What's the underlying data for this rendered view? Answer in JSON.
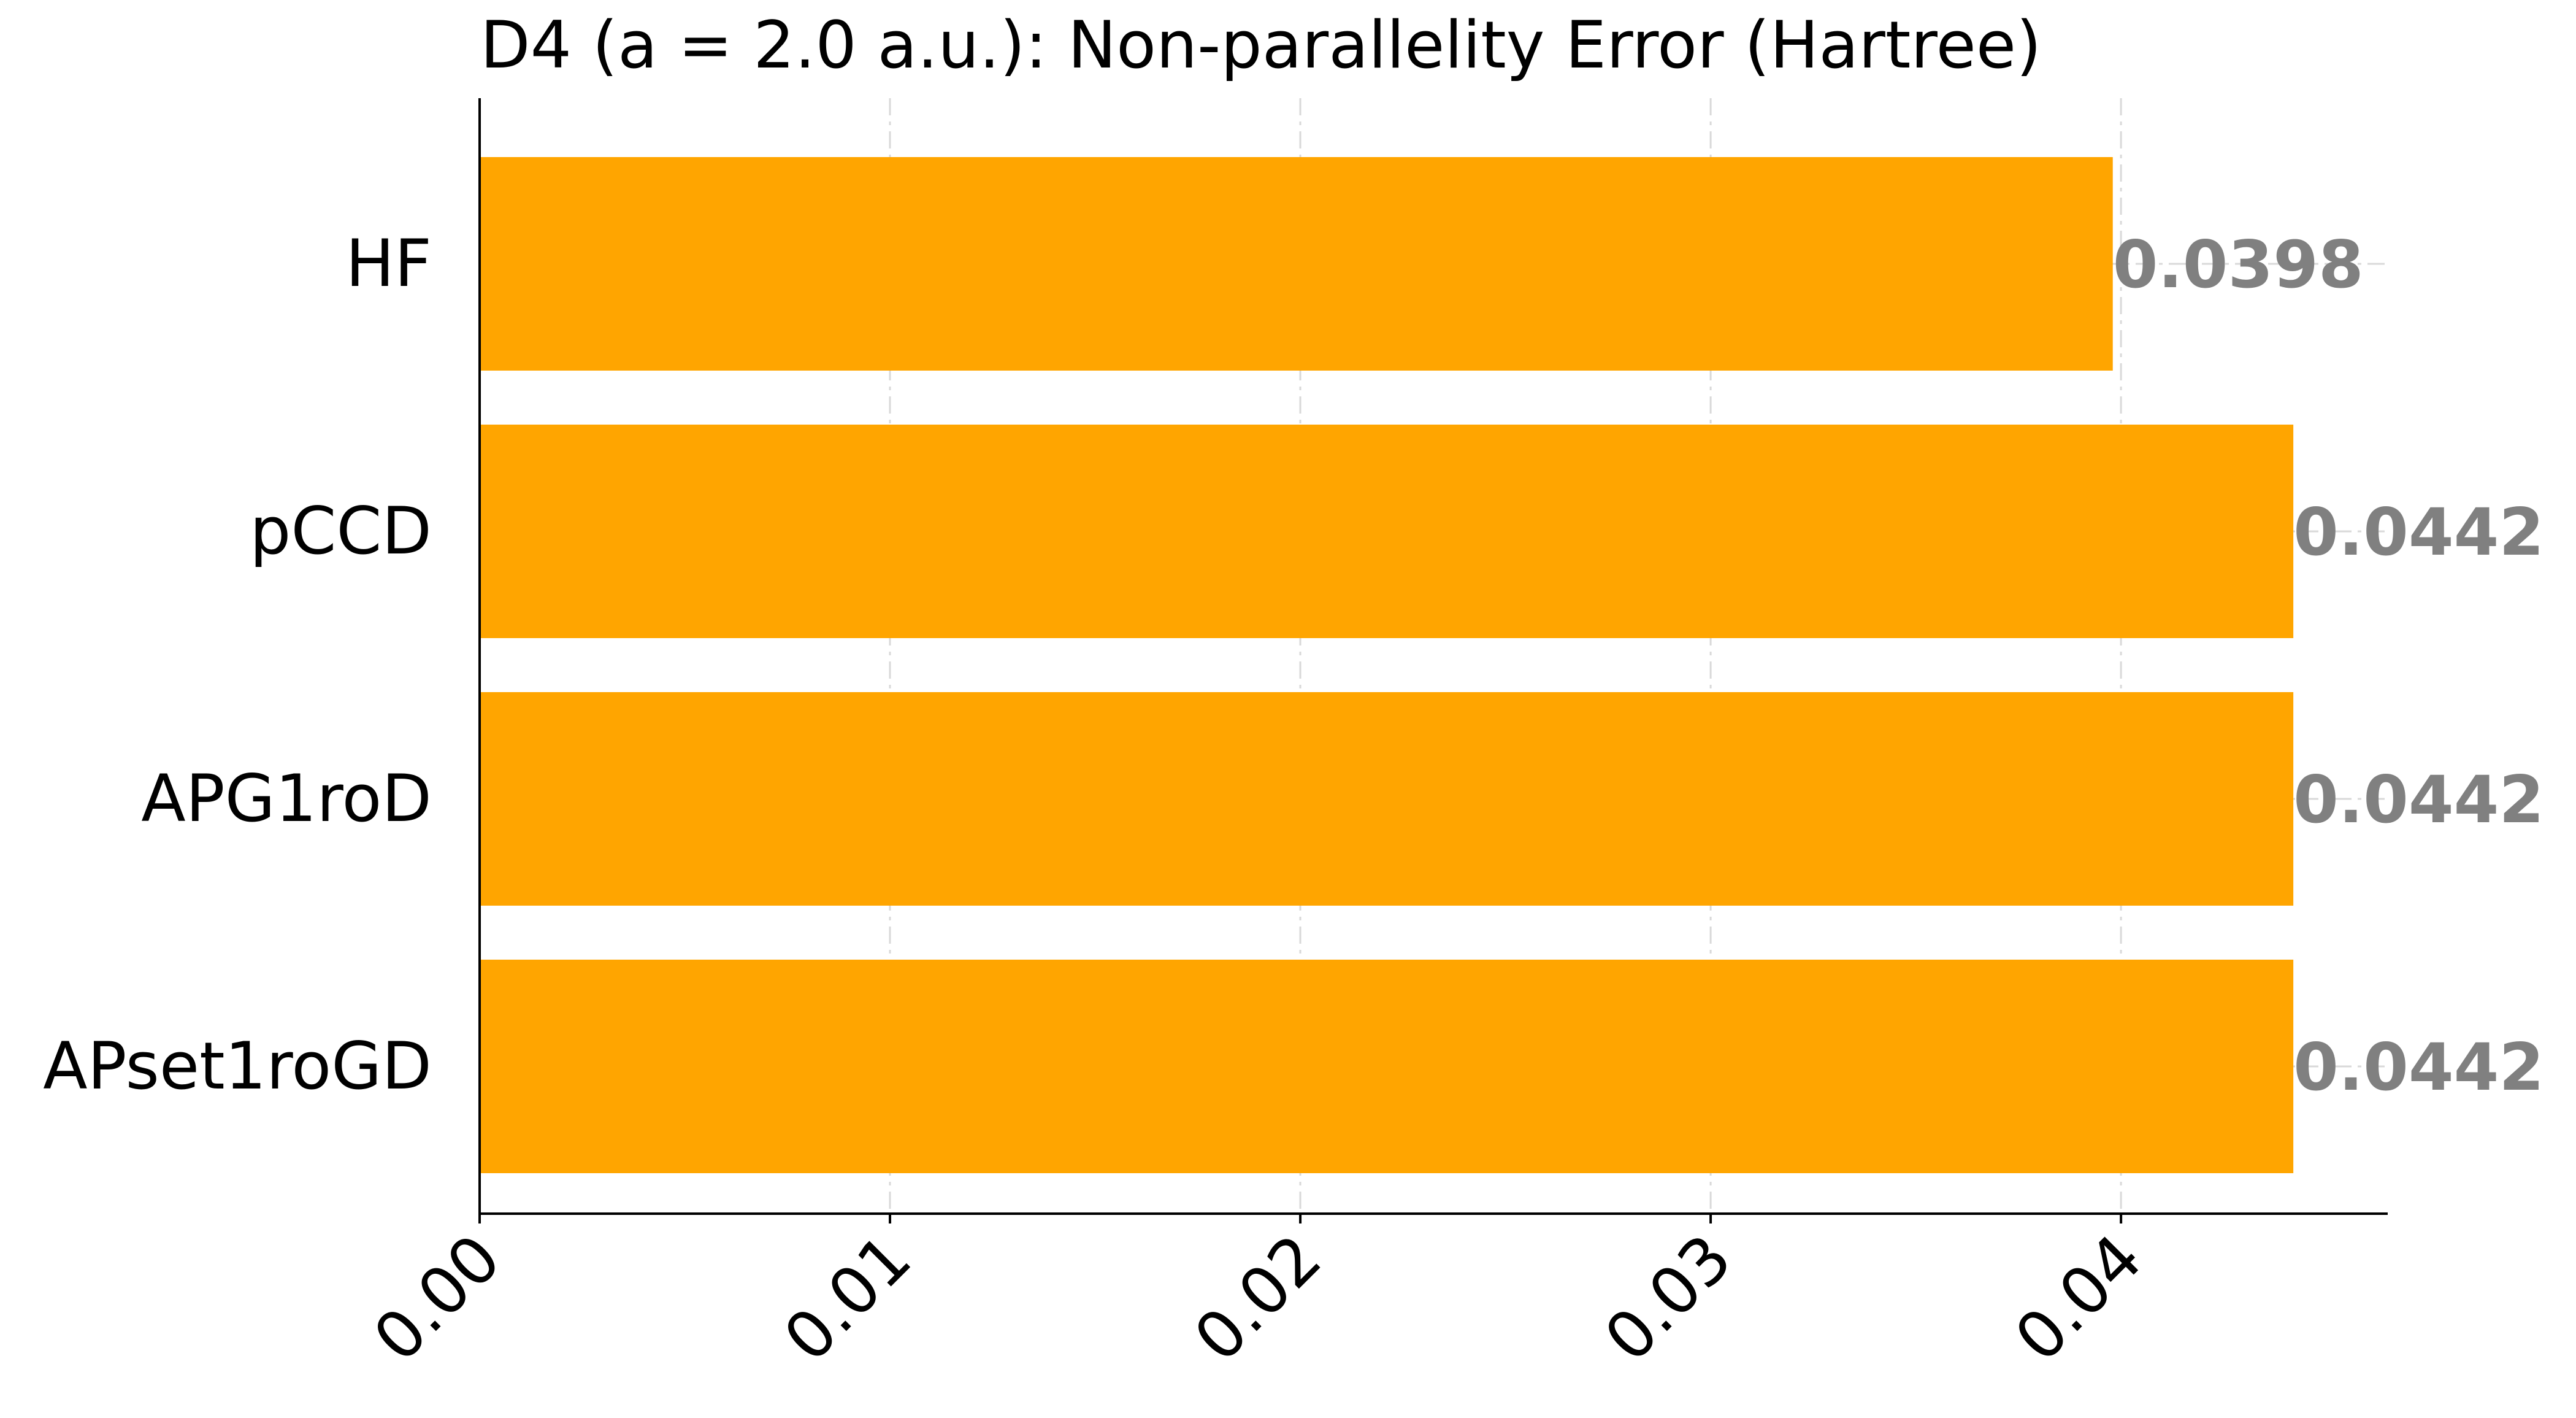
{
  "chart_data": {
    "type": "bar",
    "orientation": "horizontal",
    "title": "D4 (a = 2.0 a.u.): Non-parallelity Error (Hartree)",
    "xlabel": "",
    "ylabel": "",
    "categories": [
      "HF",
      "pCCD",
      "APG1roD",
      "APset1roGD"
    ],
    "values": [
      0.0398,
      0.0442,
      0.0442,
      0.0442
    ],
    "data_labels": [
      "0.0398",
      "0.0442",
      "0.0442",
      "0.0442"
    ],
    "xlim": [
      0,
      0.0465
    ],
    "xticks": [
      0.0,
      0.01,
      0.02,
      0.03,
      0.04
    ],
    "xtick_labels": [
      "0.00",
      "0.01",
      "0.02",
      "0.03",
      "0.04"
    ],
    "grid": true,
    "legend": "none",
    "colors": {
      "bar": "#ffa500",
      "data_label": "#808080",
      "axis": "#000000",
      "grid": "#d9d9d9"
    }
  }
}
